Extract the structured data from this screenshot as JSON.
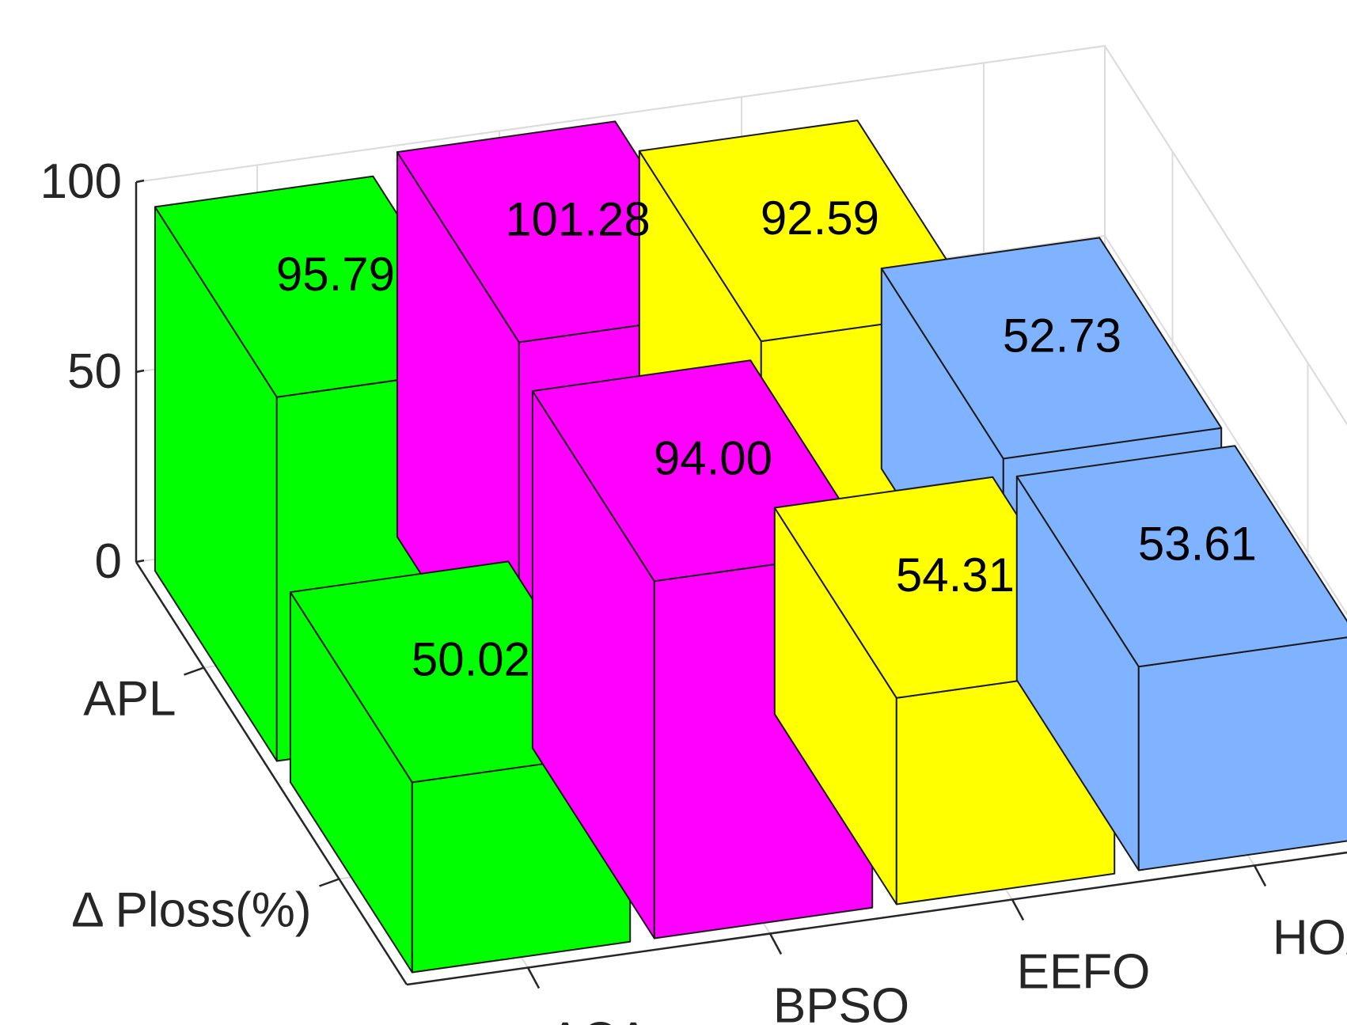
{
  "chart_data": {
    "type": "bar3d",
    "title": "",
    "xlabel": "",
    "ylabel": "",
    "zlabel": "",
    "categories": [
      "ACA",
      "BPSO",
      "EEFO",
      "HOA"
    ],
    "rows": [
      "APL",
      "Δ Ploss(%)"
    ],
    "series": [
      {
        "name": "APL",
        "values": [
          95.79,
          101.28,
          92.59,
          52.73
        ]
      },
      {
        "name": "Δ Ploss(%)",
        "values": [
          50.02,
          94.0,
          54.31,
          53.61
        ]
      }
    ],
    "value_labels": {
      "APL": [
        "95.79",
        "101.28",
        "92.59",
        "52.73"
      ],
      "Δ Ploss(%)": [
        "50.02",
        "94.00",
        "54.31",
        "53.61"
      ]
    },
    "category_colors": [
      "#00ff00",
      "#ff00ff",
      "#ffff00",
      "#80b3ff"
    ],
    "zlim": [
      0,
      100
    ],
    "zticks": [
      0,
      50,
      100
    ],
    "ztick_labels": [
      "0",
      "50",
      "100"
    ],
    "grid": true,
    "legend": "none"
  }
}
